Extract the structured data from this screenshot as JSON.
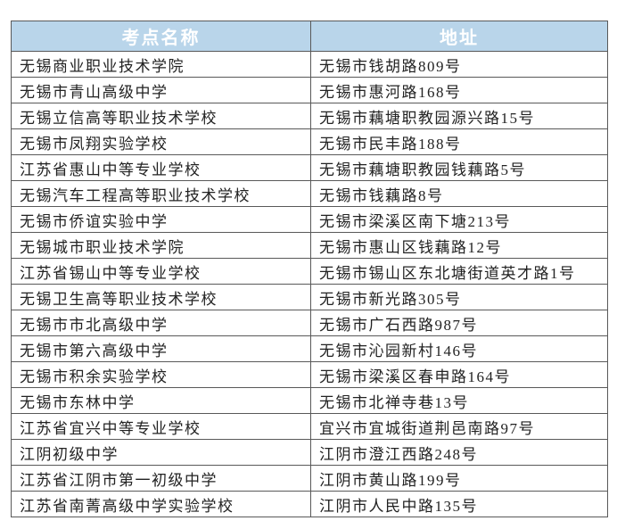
{
  "colors": {
    "header_bg": "#b9d5ea",
    "header_text": "#ffffff",
    "border": "#595959",
    "cell_text": "#222222"
  },
  "table": {
    "headers": [
      "考点名称",
      "地址"
    ],
    "rows": [
      [
        "无锡商业职业技术学院",
        "无锡市钱胡路809号"
      ],
      [
        "无锡市青山高级中学",
        "无锡市惠河路168号"
      ],
      [
        "无锡立信高等职业技术学校",
        "无锡市藕塘职教园源兴路15号"
      ],
      [
        "无锡市凤翔实验学校",
        "无锡市民丰路188号"
      ],
      [
        "江苏省惠山中等专业学校",
        "无锡市藕塘职教园钱藕路5号"
      ],
      [
        "无锡汽车工程高等职业技术学校",
        "无锡市钱藕路8号"
      ],
      [
        "无锡市侨谊实验中学",
        "无锡市梁溪区南下塘213号"
      ],
      [
        "无锡城市职业技术学院",
        "无锡市惠山区钱藕路12号"
      ],
      [
        "江苏省锡山中等专业学校",
        "无锡市锡山区东北塘街道英才路1号"
      ],
      [
        "无锡卫生高等职业技术学校",
        "无锡市新光路305号"
      ],
      [
        "无锡市市北高级中学",
        "无锡市广石西路987号"
      ],
      [
        "无锡市第六高级中学",
        "无锡市沁园新村146号"
      ],
      [
        "无锡市积余实验学校",
        "无锡市梁溪区春申路164号"
      ],
      [
        "无锡市东林中学",
        "无锡市北禅寺巷13号"
      ],
      [
        "江苏省宜兴中等专业学校",
        "宜兴市宜城街道荆邑南路97号"
      ],
      [
        "江阴初级中学",
        "江阴市澄江西路248号"
      ],
      [
        "江苏省江阴市第一初级中学",
        "江阴市黄山路199号"
      ],
      [
        "江苏省南菁高级中学实验学校",
        "江阴市人民中路135号"
      ]
    ]
  }
}
